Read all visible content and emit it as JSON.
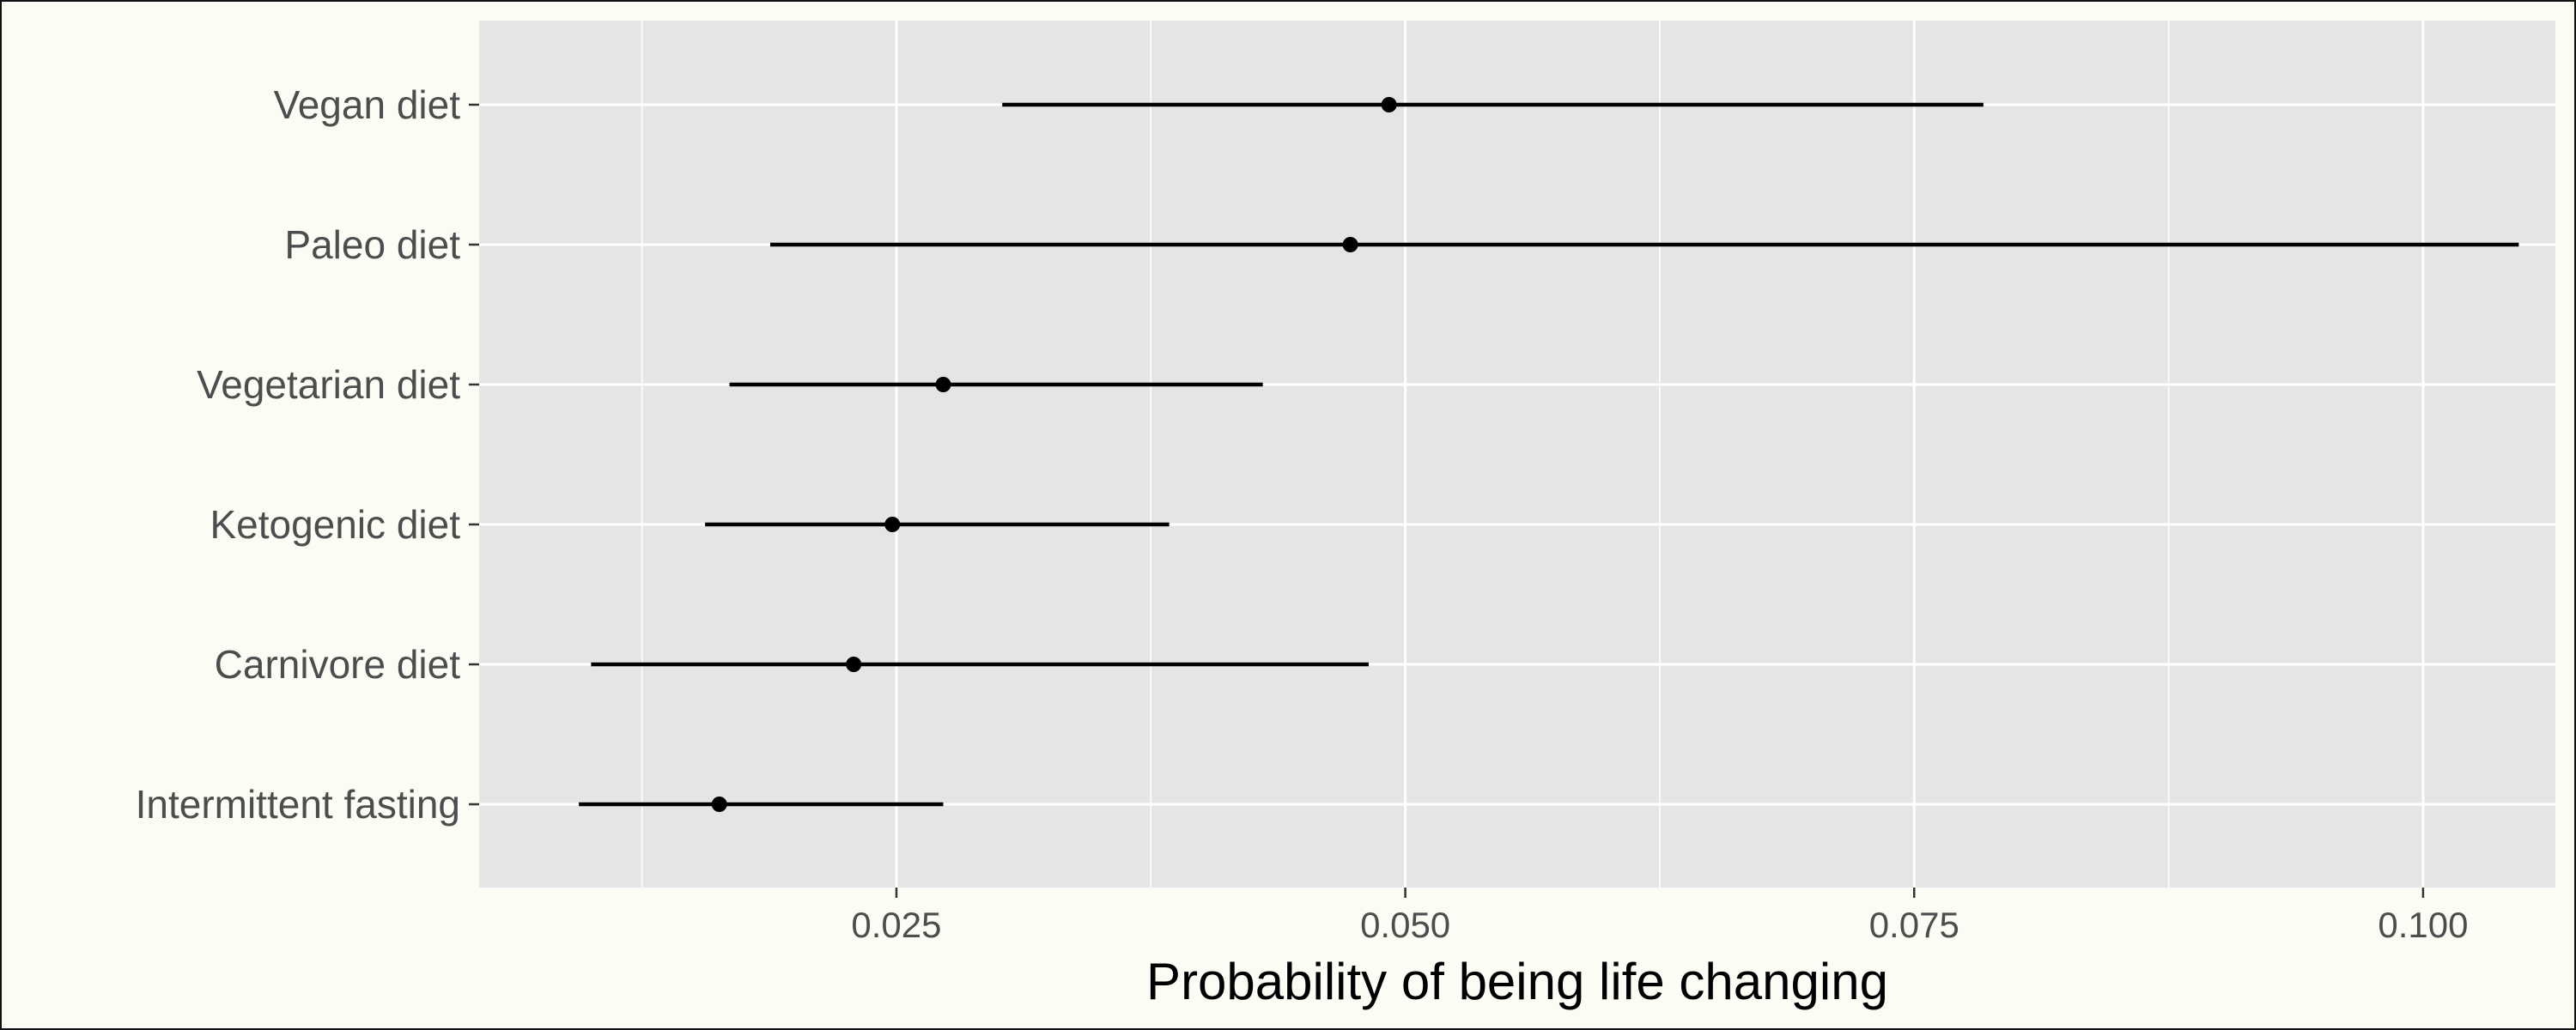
{
  "chart_data": {
    "type": "pointrange",
    "xlabel": "Probability of being life changing",
    "ylabel": "",
    "title": "",
    "xlim": [
      0.0045,
      0.1065
    ],
    "xticks": [
      0.025,
      0.05,
      0.075,
      0.1
    ],
    "xtick_labels": [
      "0.025",
      "0.050",
      "0.075",
      "0.100"
    ],
    "grid": true,
    "categories": [
      "Vegan diet",
      "Paleo diet",
      "Vegetarian diet",
      "Ketogenic diet",
      "Carnivore diet",
      "Intermittent fasting"
    ],
    "estimates": [
      0.0492,
      0.0473,
      0.0273,
      0.0248,
      0.0229,
      0.0163
    ],
    "lower": [
      0.0302,
      0.0188,
      0.0168,
      0.0156,
      0.01,
      0.0094
    ],
    "upper": [
      0.0784,
      0.1047,
      0.043,
      0.0384,
      0.0482,
      0.0273
    ],
    "colors": {
      "panel": "#e5e5e5",
      "grid": "#ffffff",
      "marks": "#000000",
      "tick_text": "#4d4d4d",
      "background": "#fcfcf5"
    }
  }
}
